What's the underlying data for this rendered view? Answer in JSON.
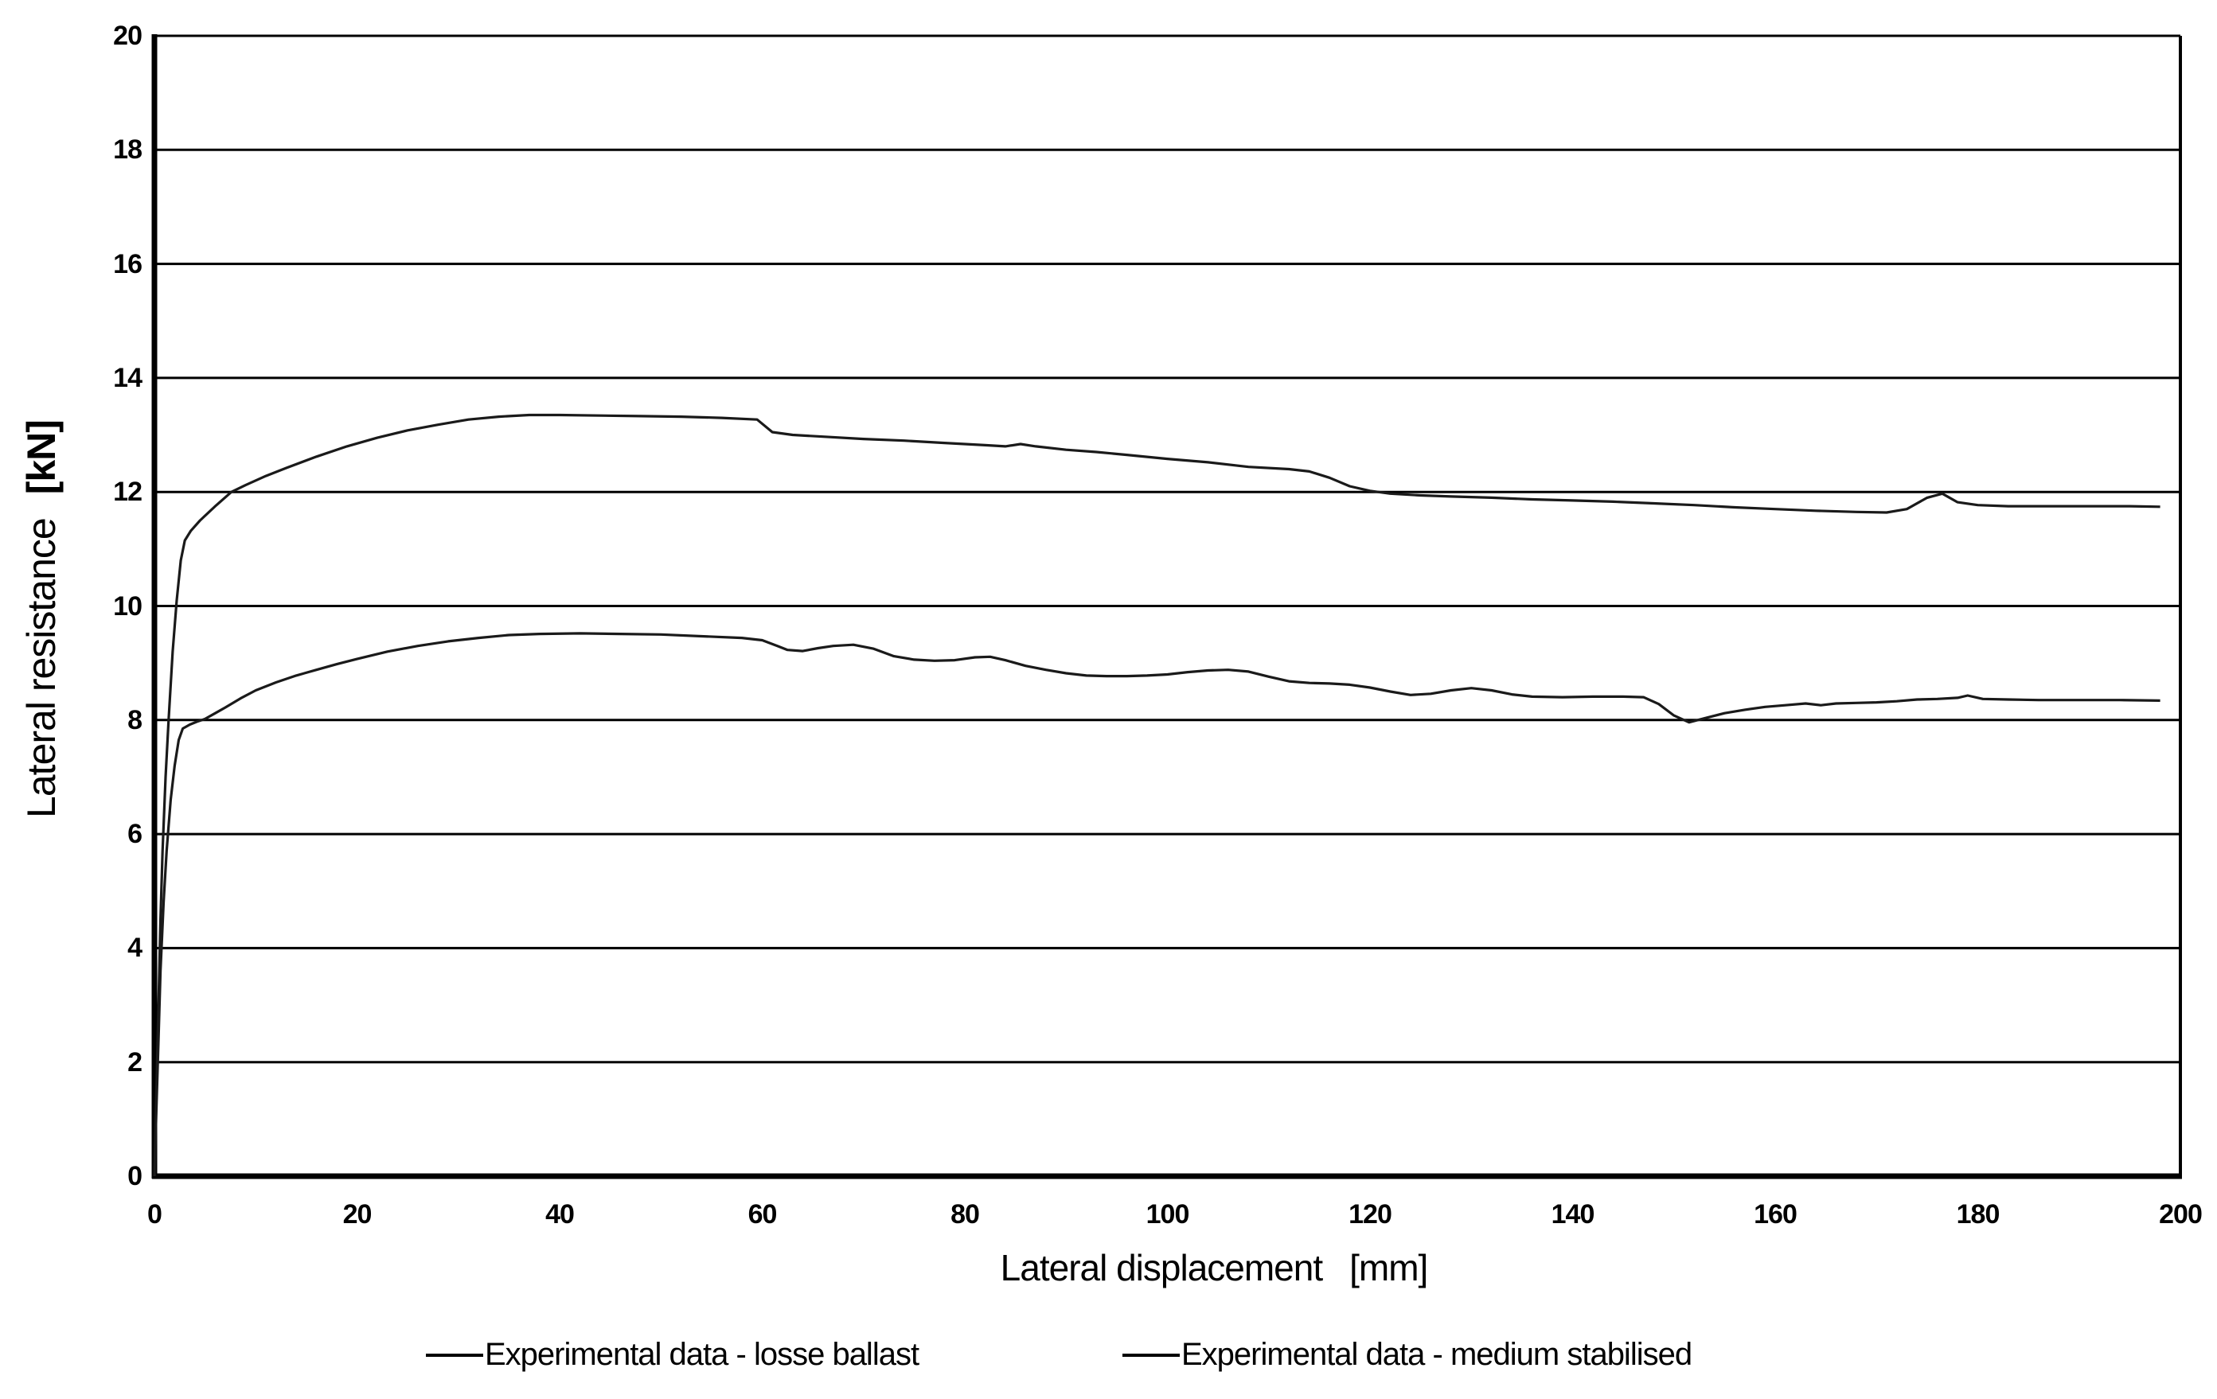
{
  "chart_data": {
    "type": "line",
    "title": "",
    "xlabel": "Lateral displacement",
    "xlabel_unit": "[mm]",
    "ylabel": "Lateral resistance",
    "ylabel_unit": "[kN]",
    "xlim": [
      0,
      200
    ],
    "ylim": [
      0,
      20
    ],
    "x_ticks": [
      0,
      20,
      40,
      60,
      80,
      100,
      120,
      140,
      160,
      180,
      200
    ],
    "y_ticks": [
      0,
      2,
      4,
      6,
      8,
      10,
      12,
      14,
      16,
      18,
      20
    ],
    "grid": "horizontal-only",
    "background": "#ffffff",
    "axis_color": "#000000",
    "legend_position": "bottom",
    "series": [
      {
        "name": "Experimental data - losse ballast",
        "color": "#1a1a1a",
        "stroke_width": 3.2,
        "points": [
          [
            0,
            0
          ],
          [
            0.2,
            1.2
          ],
          [
            0.4,
            2.4
          ],
          [
            0.6,
            3.6
          ],
          [
            0.9,
            4.8
          ],
          [
            1.2,
            5.7
          ],
          [
            1.6,
            6.6
          ],
          [
            2,
            7.2
          ],
          [
            2.4,
            7.65
          ],
          [
            2.8,
            7.85
          ],
          [
            3.5,
            7.92
          ],
          [
            4.2,
            7.97
          ],
          [
            5,
            8.02
          ],
          [
            6,
            8.12
          ],
          [
            7,
            8.22
          ],
          [
            8.5,
            8.38
          ],
          [
            10,
            8.52
          ],
          [
            12,
            8.66
          ],
          [
            14,
            8.78
          ],
          [
            16,
            8.88
          ],
          [
            18,
            8.98
          ],
          [
            20,
            9.07
          ],
          [
            23,
            9.2
          ],
          [
            26,
            9.3
          ],
          [
            29,
            9.38
          ],
          [
            32,
            9.44
          ],
          [
            35,
            9.49
          ],
          [
            38,
            9.51
          ],
          [
            42,
            9.52
          ],
          [
            46,
            9.51
          ],
          [
            50,
            9.5
          ],
          [
            54,
            9.47
          ],
          [
            58,
            9.44
          ],
          [
            60,
            9.4
          ],
          [
            61.5,
            9.3
          ],
          [
            62.5,
            9.23
          ],
          [
            64,
            9.21
          ],
          [
            65.5,
            9.26
          ],
          [
            67,
            9.3
          ],
          [
            69,
            9.32
          ],
          [
            71,
            9.25
          ],
          [
            73,
            9.12
          ],
          [
            75,
            9.06
          ],
          [
            77,
            9.04
          ],
          [
            79,
            9.05
          ],
          [
            81,
            9.1
          ],
          [
            82.5,
            9.11
          ],
          [
            84,
            9.05
          ],
          [
            86,
            8.95
          ],
          [
            88,
            8.88
          ],
          [
            90,
            8.82
          ],
          [
            92,
            8.78
          ],
          [
            94,
            8.77
          ],
          [
            96,
            8.77
          ],
          [
            98,
            8.78
          ],
          [
            100,
            8.8
          ],
          [
            102,
            8.84
          ],
          [
            104,
            8.87
          ],
          [
            106,
            8.88
          ],
          [
            108,
            8.85
          ],
          [
            110,
            8.76
          ],
          [
            112,
            8.68
          ],
          [
            114,
            8.65
          ],
          [
            116,
            8.64
          ],
          [
            118,
            8.62
          ],
          [
            120,
            8.57
          ],
          [
            122,
            8.5
          ],
          [
            124,
            8.44
          ],
          [
            126,
            8.46
          ],
          [
            128,
            8.52
          ],
          [
            130,
            8.56
          ],
          [
            132,
            8.52
          ],
          [
            134,
            8.45
          ],
          [
            136,
            8.41
          ],
          [
            139,
            8.4
          ],
          [
            142,
            8.41
          ],
          [
            145,
            8.41
          ],
          [
            147,
            8.4
          ],
          [
            148.5,
            8.28
          ],
          [
            150,
            8.08
          ],
          [
            151.5,
            7.96
          ],
          [
            153,
            8.03
          ],
          [
            155,
            8.12
          ],
          [
            157,
            8.18
          ],
          [
            159,
            8.23
          ],
          [
            161,
            8.26
          ],
          [
            163,
            8.29
          ],
          [
            164.5,
            8.26
          ],
          [
            166,
            8.29
          ],
          [
            168,
            8.3
          ],
          [
            170,
            8.31
          ],
          [
            172,
            8.33
          ],
          [
            174,
            8.36
          ],
          [
            176,
            8.37
          ],
          [
            178,
            8.39
          ],
          [
            179,
            8.43
          ],
          [
            180.5,
            8.37
          ],
          [
            183,
            8.36
          ],
          [
            186,
            8.35
          ],
          [
            190,
            8.35
          ],
          [
            194,
            8.35
          ],
          [
            198,
            8.34
          ]
        ]
      },
      {
        "name": "Experimental data - medium stabilised",
        "color": "#1a1a1a",
        "stroke_width": 3.2,
        "points": [
          [
            0,
            0
          ],
          [
            0.2,
            1.5
          ],
          [
            0.4,
            3
          ],
          [
            0.6,
            4.5
          ],
          [
            0.8,
            5.7
          ],
          [
            1.1,
            7
          ],
          [
            1.4,
            8
          ],
          [
            1.8,
            9.2
          ],
          [
            2.2,
            10.1
          ],
          [
            2.6,
            10.8
          ],
          [
            3,
            11.15
          ],
          [
            3.6,
            11.32
          ],
          [
            4.5,
            11.5
          ],
          [
            6,
            11.75
          ],
          [
            7.6,
            12
          ],
          [
            9,
            12.12
          ],
          [
            11,
            12.28
          ],
          [
            13,
            12.42
          ],
          [
            16,
            12.62
          ],
          [
            19,
            12.8
          ],
          [
            22,
            12.95
          ],
          [
            25,
            13.08
          ],
          [
            28,
            13.18
          ],
          [
            31,
            13.27
          ],
          [
            34,
            13.32
          ],
          [
            37,
            13.35
          ],
          [
            40,
            13.35
          ],
          [
            44,
            13.34
          ],
          [
            48,
            13.33
          ],
          [
            52,
            13.32
          ],
          [
            56,
            13.3
          ],
          [
            59.5,
            13.27
          ],
          [
            61,
            13.05
          ],
          [
            63,
            13
          ],
          [
            66,
            12.97
          ],
          [
            70,
            12.93
          ],
          [
            74,
            12.9
          ],
          [
            78,
            12.86
          ],
          [
            82,
            12.82
          ],
          [
            84,
            12.8
          ],
          [
            85.5,
            12.84
          ],
          [
            87,
            12.8
          ],
          [
            90,
            12.74
          ],
          [
            93,
            12.7
          ],
          [
            96,
            12.65
          ],
          [
            100,
            12.58
          ],
          [
            104,
            12.52
          ],
          [
            108,
            12.44
          ],
          [
            112,
            12.4
          ],
          [
            114,
            12.36
          ],
          [
            116,
            12.25
          ],
          [
            118,
            12.1
          ],
          [
            120,
            12.02
          ],
          [
            122,
            11.97
          ],
          [
            125,
            11.94
          ],
          [
            128,
            11.92
          ],
          [
            132,
            11.9
          ],
          [
            136,
            11.87
          ],
          [
            140,
            11.85
          ],
          [
            144,
            11.83
          ],
          [
            148,
            11.8
          ],
          [
            152,
            11.77
          ],
          [
            156,
            11.73
          ],
          [
            160,
            11.7
          ],
          [
            164,
            11.67
          ],
          [
            168,
            11.65
          ],
          [
            171,
            11.64
          ],
          [
            173,
            11.7
          ],
          [
            175,
            11.9
          ],
          [
            176.5,
            11.97
          ],
          [
            178,
            11.82
          ],
          [
            180,
            11.77
          ],
          [
            183,
            11.75
          ],
          [
            187,
            11.75
          ],
          [
            191,
            11.75
          ],
          [
            195,
            11.75
          ],
          [
            198,
            11.74
          ]
        ]
      }
    ]
  }
}
